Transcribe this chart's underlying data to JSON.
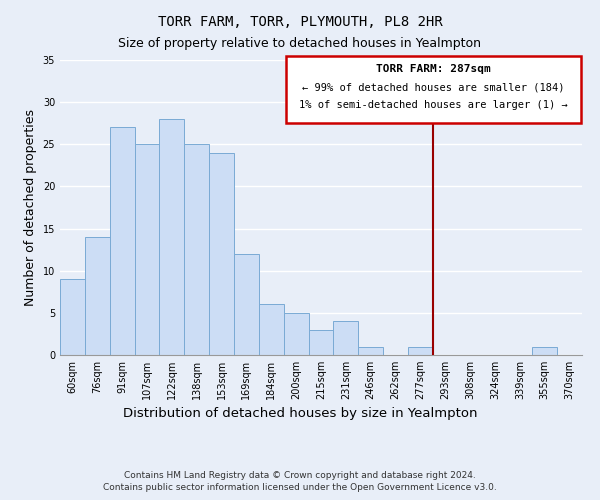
{
  "title": "TORR FARM, TORR, PLYMOUTH, PL8 2HR",
  "subtitle": "Size of property relative to detached houses in Yealmpton",
  "xlabel": "Distribution of detached houses by size in Yealmpton",
  "ylabel": "Number of detached properties",
  "bar_labels": [
    "60sqm",
    "76sqm",
    "91sqm",
    "107sqm",
    "122sqm",
    "138sqm",
    "153sqm",
    "169sqm",
    "184sqm",
    "200sqm",
    "215sqm",
    "231sqm",
    "246sqm",
    "262sqm",
    "277sqm",
    "293sqm",
    "308sqm",
    "324sqm",
    "339sqm",
    "355sqm",
    "370sqm"
  ],
  "bar_values": [
    9,
    14,
    27,
    25,
    28,
    25,
    24,
    12,
    6,
    5,
    3,
    4,
    1,
    0,
    1,
    0,
    0,
    0,
    0,
    1,
    0
  ],
  "bar_color": "#ccddf5",
  "bar_edge_color": "#7aaad4",
  "ylim": [
    0,
    35
  ],
  "yticks": [
    0,
    5,
    10,
    15,
    20,
    25,
    30,
    35
  ],
  "vline_color": "#990000",
  "annotation_title": "TORR FARM: 287sqm",
  "annotation_line1": "← 99% of detached houses are smaller (184)",
  "annotation_line2": "1% of semi-detached houses are larger (1) →",
  "annotation_box_color": "#cc0000",
  "annotation_fill": "#ffffff",
  "footer_line1": "Contains HM Land Registry data © Crown copyright and database right 2024.",
  "footer_line2": "Contains public sector information licensed under the Open Government Licence v3.0.",
  "background_color": "#e8eef8",
  "plot_bg_color": "#e8eef8",
  "grid_color": "#ffffff",
  "title_fontsize": 10,
  "subtitle_fontsize": 9,
  "axis_label_fontsize": 9,
  "tick_fontsize": 7,
  "footer_fontsize": 6.5
}
